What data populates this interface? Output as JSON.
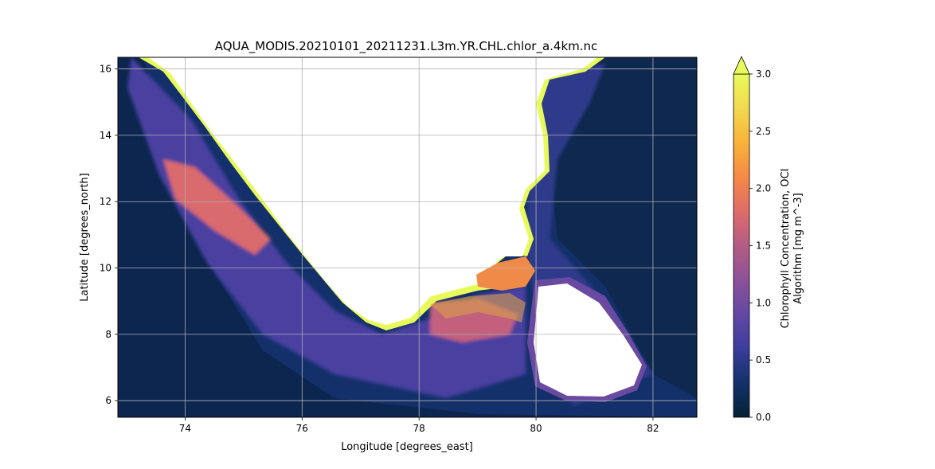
{
  "chart_data": {
    "type": "heatmap",
    "title": "AQUA_MODIS.20210101_20211231.L3m.YR.CHL.chlor_a.4km.nc",
    "xlabel": "Longitude [degrees_east]",
    "ylabel": "Latitude [degrees_north]",
    "xlim": [
      72.85,
      82.75
    ],
    "ylim": [
      5.5,
      16.35
    ],
    "x_ticks": [
      74,
      76,
      78,
      80,
      82
    ],
    "y_ticks": [
      6,
      8,
      10,
      12,
      14,
      16
    ],
    "grid": true,
    "colormap": "thermal",
    "colorbar": {
      "label_line1": "Chlorophyll Concentration, OCI",
      "label_line2": "Algorithm [mg m^-3]",
      "range": [
        0.0,
        3.0
      ],
      "extend": "max",
      "ticks": [
        "0.0",
        "0.5",
        "1.0",
        "1.5",
        "2.0",
        "2.5",
        "3.0"
      ],
      "colors": [
        "#042333",
        "#14306b",
        "#3a3d9c",
        "#6448a5",
        "#8c5197",
        "#b45c85",
        "#de6c69",
        "#f58a46",
        "#f9b23a",
        "#f2d94e",
        "#e8fa5b"
      ]
    },
    "land_color": "#ffffff",
    "ocean_base_color": "#14306b",
    "coastal_color": "#e8fa5b"
  }
}
